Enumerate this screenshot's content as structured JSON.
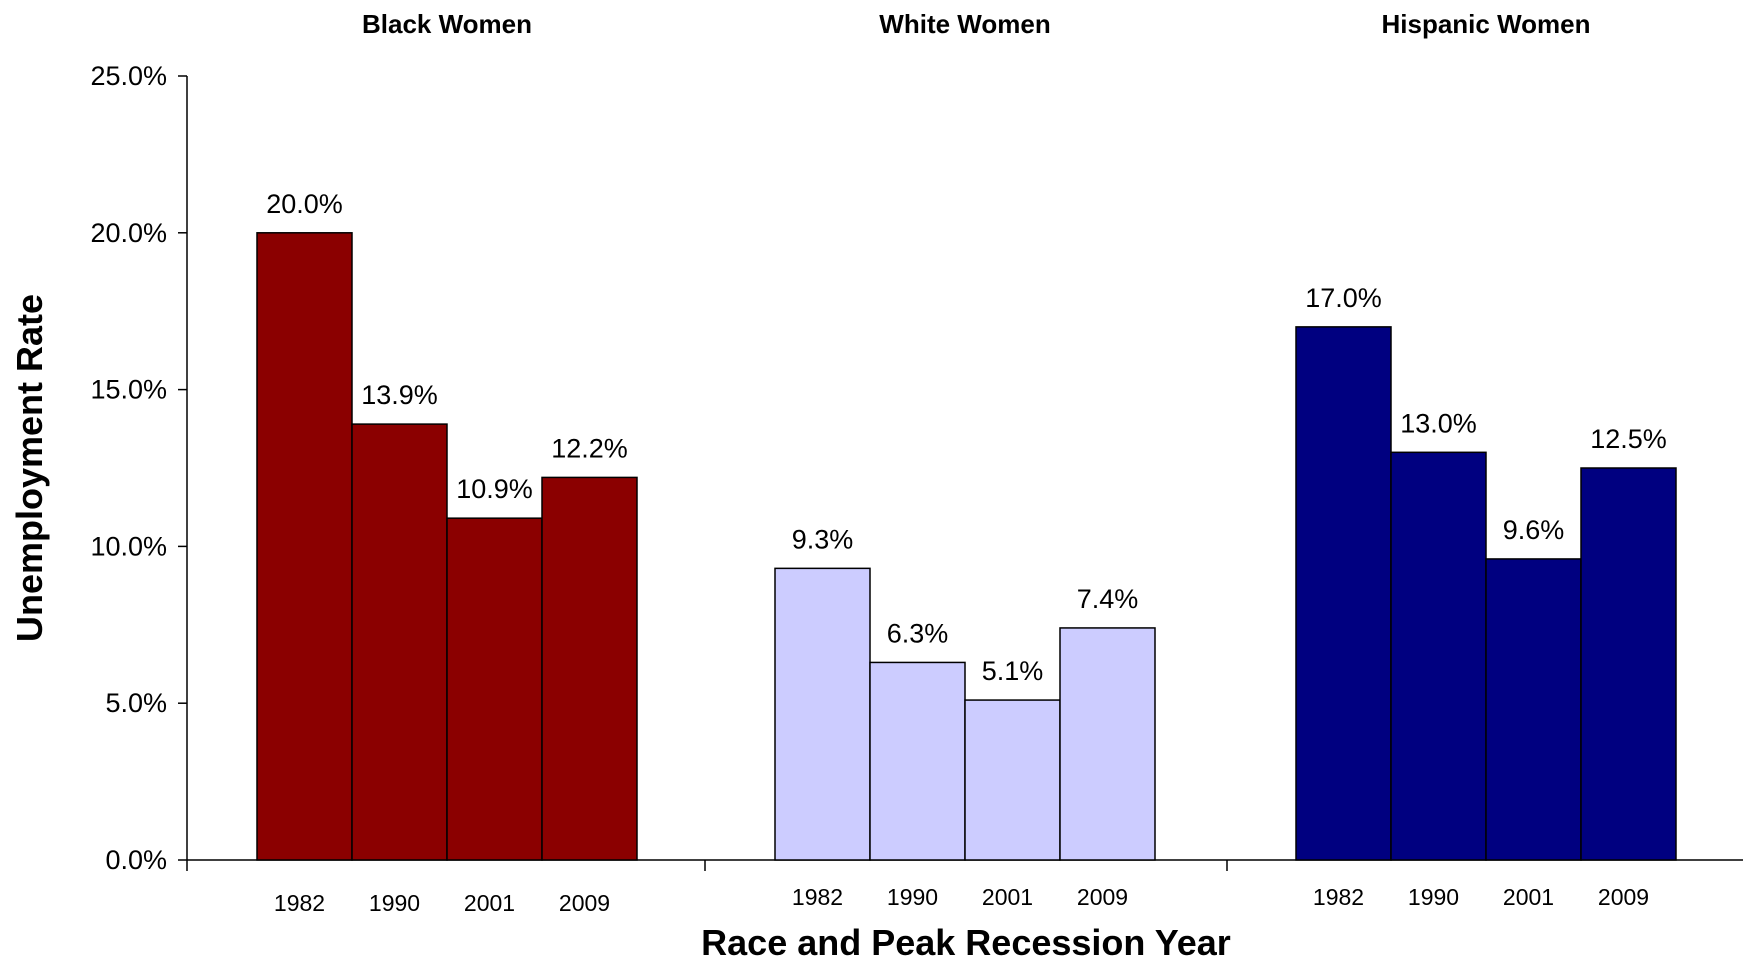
{
  "chart_data": {
    "type": "bar",
    "xlabel": "Race and Peak Recession Year",
    "ylabel": "Unemployment Rate",
    "ylim": [
      0,
      25
    ],
    "yticks": [
      "0.0%",
      "5.0%",
      "10.0%",
      "15.0%",
      "20.0%",
      "25.0%"
    ],
    "grid": false,
    "legend": "none",
    "groups": [
      {
        "title": "Black Women",
        "color": "#8b0000",
        "categories": [
          "1982",
          "1990",
          "2001",
          "2009"
        ],
        "values": [
          20.0,
          13.9,
          10.9,
          12.2
        ],
        "labels": [
          "20.0%",
          "13.9%",
          "10.9%",
          "12.2%"
        ]
      },
      {
        "title": "White Women",
        "color": "#ccccff",
        "categories": [
          "1982",
          "1990",
          "2001",
          "2009"
        ],
        "values": [
          9.3,
          6.3,
          5.1,
          7.4
        ],
        "labels": [
          "9.3%",
          "6.3%",
          "5.1%",
          "7.4%"
        ]
      },
      {
        "title": "Hispanic Women",
        "color": "#000080",
        "categories": [
          "1982",
          "1990",
          "2001",
          "2009"
        ],
        "values": [
          17.0,
          13.0,
          9.6,
          12.5
        ],
        "labels": [
          "17.0%",
          "13.0%",
          "9.6%",
          "12.5%"
        ]
      }
    ]
  }
}
